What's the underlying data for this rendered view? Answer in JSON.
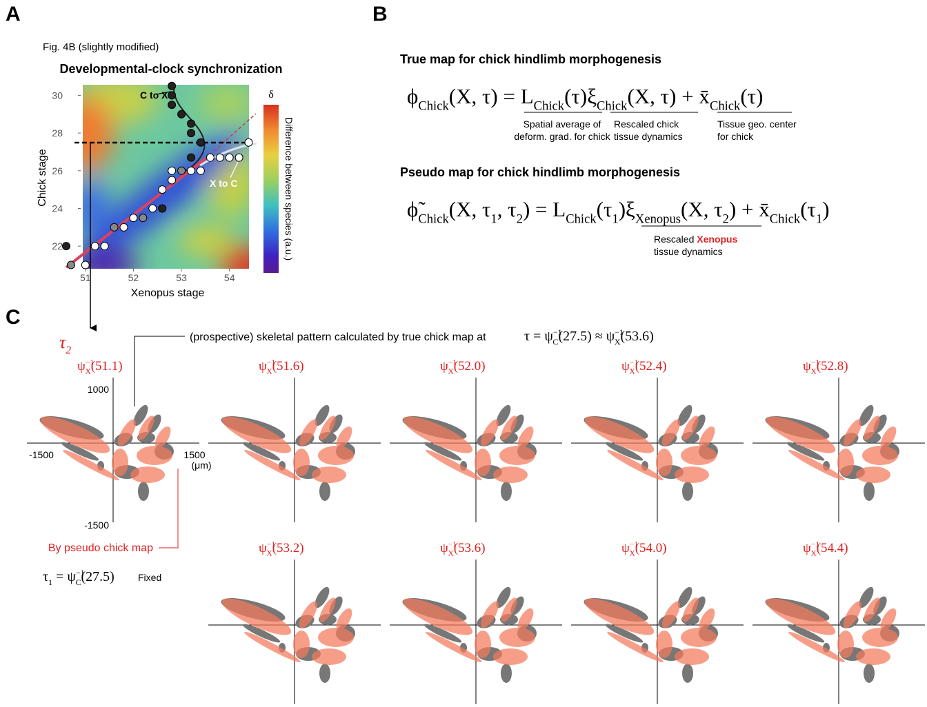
{
  "panel_labels": [
    "A",
    "B",
    "C"
  ],
  "chart_data": {
    "type": "scatter",
    "subtitle": "Fig. 4B (slightly modified)",
    "title": "Developmental-clock synchronization",
    "x_label": "Xenopus stage",
    "y_label": "Chick stage",
    "colorbar_symbol": "δ",
    "colorbar_label": "Difference between species (a.u.)",
    "xlim": [
      50.5,
      54.55
    ],
    "xticks": [
      51,
      52,
      53,
      54
    ],
    "ylim": [
      20.8,
      30.6
    ],
    "yticks": [
      22,
      24,
      26,
      28,
      30
    ],
    "series": [
      {
        "name": "C to X",
        "color": "#222222",
        "x": [
          50.6,
          52.8,
          52.8,
          52.8,
          53.0,
          53.2,
          53.2,
          53.4,
          53.2,
          52.6
        ],
        "values": [
          22,
          30.5,
          30,
          29.5,
          29,
          28.5,
          28,
          27.5,
          26.7,
          24
        ]
      },
      {
        "name": "X to C",
        "color": "#ffffff",
        "x": [
          51.0,
          51.2,
          51.4,
          51.8,
          52.0,
          52.4,
          52.6,
          52.8,
          52.8,
          53.2,
          53.4,
          53.6,
          53.8,
          54.0,
          54.2,
          54.4
        ],
        "values": [
          21,
          22,
          22,
          23,
          23.5,
          24,
          25,
          25.5,
          26,
          26,
          26,
          26.7,
          26.7,
          26.7,
          26.7,
          27.5
        ]
      },
      {
        "color": "#888888",
        "x": [
          50.7,
          51.6,
          52.2,
          53.0
        ],
        "values": [
          21,
          23,
          23.5,
          26
        ]
      }
    ]
  },
  "panel_b": {
    "true_map": {
      "heading": "True map for chick hindlimb morphogenesis",
      "formula": [
        {
          "t": "ϕ",
          "sub": "Chick"
        },
        {
          "t": "(X, τ) = L",
          "sub": "Chick"
        },
        {
          "t": "(τ)ξ",
          "sub": "Chick"
        },
        {
          "t": "(X, τ) + x̄",
          "sub": "Chick"
        },
        {
          "t": "(τ)"
        }
      ],
      "notes": [
        [
          "Spatial average of",
          "deform. grad. for chick"
        ],
        [
          "Rescaled chick",
          "tissue dynamics"
        ],
        [
          "Tissue geo. center",
          "for chick"
        ]
      ]
    },
    "pseudo_map": {
      "heading": "Pseudo map for chick hindlimb morphogenesis",
      "formula": [
        {
          "t": "ϕ̃",
          "sub": "Chick"
        },
        {
          "t": "(X, τ",
          "sub": "1"
        },
        {
          "t": ", τ",
          "sub": "2"
        },
        {
          "t": ") = L",
          "sub": "Chick"
        },
        {
          "t": "(τ",
          "sub": "1"
        },
        {
          "t": ")ξ",
          "sub": "Xenopus"
        },
        {
          "t": "(X, τ",
          "sub": "2"
        },
        {
          "t": ") + x̄",
          "sub": "Chick"
        },
        {
          "t": "(τ",
          "sub": "1"
        },
        {
          "t": ")"
        }
      ],
      "note_line1": [
        "Rescaled ",
        "Xenopus"
      ],
      "note_line2": "tissue dynamics"
    }
  },
  "panel_c": {
    "tau2": [
      {
        "t": "τ",
        "sub": "2"
      }
    ],
    "reference_note": "(prospective) skeletal pattern calculated by true chick map at",
    "reference_formula": [
      {
        "t": "τ = ψ",
        "sup": "−1",
        "sub": "C"
      },
      {
        "t": "(27.5) ≈ ψ",
        "sup": "−1",
        "sub": "X"
      },
      {
        "t": "(53.6)"
      }
    ],
    "pseudo_note": "By pseudo chick map",
    "tau1_formula": [
      {
        "t": "τ",
        "sub": "1"
      },
      {
        "t": " = ψ",
        "sup": "−1",
        "sub": "C"
      },
      {
        "t": "(27.5)"
      }
    ],
    "tau1_note": "Fixed",
    "axes": {
      "y_top": "1000",
      "y_bottom": "-1500",
      "x_left": "-1500",
      "x_right": "1500",
      "unit": "(μm)"
    },
    "plots": [
      [
        {
          "t": "ψ",
          "sup": "−1",
          "sub": "X"
        },
        {
          "t": "(51.1)"
        }
      ],
      [
        {
          "t": "ψ",
          "sup": "−1",
          "sub": "X"
        },
        {
          "t": "(51.6)"
        }
      ],
      [
        {
          "t": "ψ",
          "sup": "−1",
          "sub": "X"
        },
        {
          "t": "(52.0)"
        }
      ],
      [
        {
          "t": "ψ",
          "sup": "−1",
          "sub": "X"
        },
        {
          "t": "(52.4)"
        }
      ],
      [
        {
          "t": "ψ",
          "sup": "−1",
          "sub": "X"
        },
        {
          "t": "(52.8)"
        }
      ],
      [
        {
          "t": "ψ",
          "sup": "−1",
          "sub": "X"
        },
        {
          "t": "(53.2)"
        }
      ],
      [
        {
          "t": "ψ",
          "sup": "−1",
          "sub": "X"
        },
        {
          "t": "(53.6)"
        }
      ],
      [
        {
          "t": "ψ",
          "sup": "−1",
          "sub": "X"
        },
        {
          "t": "(54.0)"
        }
      ],
      [
        {
          "t": "ψ",
          "sup": "−1",
          "sub": "X"
        },
        {
          "t": "(54.4)"
        }
      ]
    ]
  }
}
